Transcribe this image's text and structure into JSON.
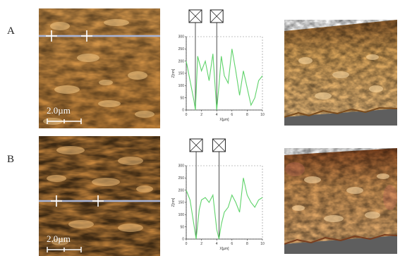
{
  "panels": [
    {
      "id": "A",
      "label": "A",
      "scale_bar": "2.0µm",
      "chart_data": {
        "type": "line",
        "x": [
          0,
          0.5,
          1,
          1.2,
          1.5,
          2,
          2.5,
          3,
          3.5,
          4,
          4.3,
          4.6,
          5,
          5.5,
          6,
          6.5,
          7,
          7.5,
          8,
          8.5,
          9,
          9.5,
          10
        ],
        "y": [
          200,
          120,
          40,
          0,
          220,
          160,
          200,
          120,
          230,
          0,
          100,
          220,
          140,
          110,
          250,
          160,
          60,
          160,
          90,
          20,
          50,
          120,
          140
        ],
        "xlabel": "X[µm]",
        "ylabel": "Z[nm]",
        "xlim": [
          0,
          10
        ],
        "ylim": [
          0,
          300
        ],
        "xticks": [
          "0",
          "2",
          "4",
          "6",
          "8",
          "10"
        ],
        "yticks": [
          "0",
          "50",
          "100",
          "150",
          "200",
          "250",
          "300"
        ],
        "cursor_x": [
          1.2,
          4.0
        ],
        "grid": false
      }
    },
    {
      "id": "B",
      "label": "B",
      "scale_bar": "2.0µm",
      "chart_data": {
        "type": "line",
        "x": [
          0,
          0.5,
          1,
          1.3,
          1.7,
          2,
          2.5,
          3,
          3.5,
          4,
          4.3,
          4.6,
          5,
          5.5,
          6,
          6.5,
          7,
          7.5,
          8,
          8.5,
          9,
          9.5,
          10
        ],
        "y": [
          200,
          160,
          60,
          0,
          120,
          160,
          170,
          150,
          180,
          40,
          0,
          60,
          110,
          130,
          180,
          150,
          110,
          250,
          180,
          150,
          130,
          160,
          170
        ],
        "xlabel": "X[µm]",
        "ylabel": "Z[nm]",
        "xlim": [
          0,
          10
        ],
        "ylim": [
          0,
          300
        ],
        "xticks": [
          "0",
          "2",
          "4",
          "6",
          "8",
          "10"
        ],
        "yticks": [
          "0",
          "50",
          "100",
          "150",
          "200",
          "250",
          "300"
        ],
        "cursor_x": [
          1.3,
          4.3
        ],
        "grid": false
      }
    }
  ],
  "colors": {
    "profile_line": "#5fd36a",
    "afm_base": "#b8772e",
    "afm_bright": "#f0c07a",
    "afm_dark": "#5a2a0c",
    "scan_line": "#a8b4d6"
  }
}
